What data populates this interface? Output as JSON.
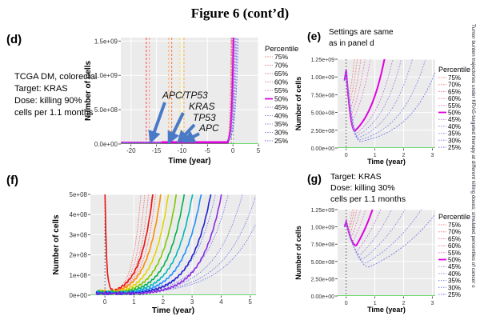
{
  "figure_title": "Figure 6 (cont’d)",
  "panels": {
    "d": {
      "letter": "(d)",
      "info_lines": [
        "TCGA DM, colorectal",
        "Target: KRAS",
        "Dose: killing 90%",
        "cells per 1.1 months"
      ],
      "mutation_labels": [
        "APC/TP53",
        "KRAS",
        "TP53",
        "APC"
      ]
    },
    "e": {
      "letter": "(e)",
      "note_lines": [
        "Settings are same",
        "as in panel d"
      ]
    },
    "f": {
      "letter": "(f)"
    },
    "g": {
      "letter": "(g)",
      "info_lines": [
        "Target: KRAS",
        "Dose: killing 30%",
        "cells per 1.1 months"
      ]
    }
  },
  "legend": {
    "title": "Percentile",
    "entries": [
      "75%",
      "70%",
      "65%",
      "60%",
      "55%",
      "50%",
      "45%",
      "40%",
      "35%",
      "30%",
      "25%"
    ],
    "colors": [
      "#f08080",
      "#f08080",
      "#e9788f",
      "#e47ab0",
      "#de77c8",
      "#e000e0",
      "#b07ad8",
      "#9a80e0",
      "#8888e8",
      "#7a80ea",
      "#6a6ee8"
    ]
  },
  "colors": {
    "threshold": "#22cc22",
    "arrow": "#4a79c6",
    "magenta": "#e000e0"
  },
  "sidebar_text": "Tumor burden trajectories under KRAS-targeted therapy at different killing doses; simulated percentiles of cancer cell numbers over time",
  "chart_data": [
    {
      "panel": "d",
      "type": "line",
      "xlabel": "Time (year)",
      "ylabel": "Number of cells",
      "xlim": [
        -22,
        5
      ],
      "ylim": [
        0,
        1550000000
      ],
      "xticks": [
        -20,
        -15,
        -10,
        -5,
        0,
        5
      ],
      "yticks": [
        0,
        500000000,
        1000000000,
        1500000000
      ],
      "ytick_labels": [
        "0.0e+00",
        "5.0e+08",
        "1.0e+09",
        "1.5e+09"
      ],
      "vlines": [
        -17,
        -16.4,
        -12.6,
        -12.0,
        -10.4,
        -9.6,
        -0.3,
        0.1
      ],
      "vline_colors": [
        "#ff3333",
        "#ff8888",
        "#ffaa44",
        "#ff6633",
        "#ffee33",
        "#ffaa44",
        "#999999",
        "#999999"
      ],
      "series_model": "baseline 2e7 cells until t=0, then rapid regrowth with rate k",
      "series": [
        {
          "name": "75%",
          "k": 5.2
        },
        {
          "name": "70%",
          "k": 4.7
        },
        {
          "name": "65%",
          "k": 4.3
        },
        {
          "name": "60%",
          "k": 3.9
        },
        {
          "name": "55%",
          "k": 3.6
        },
        {
          "name": "50%",
          "k": 3.3
        },
        {
          "name": "45%",
          "k": 3.0
        },
        {
          "name": "40%",
          "k": 2.7
        },
        {
          "name": "35%",
          "k": 2.45
        },
        {
          "name": "30%",
          "k": 2.2
        },
        {
          "name": "25%",
          "k": 1.95
        }
      ]
    },
    {
      "panel": "e",
      "type": "line",
      "xlabel": "Time (year)",
      "ylabel": "Number of cells",
      "xlim": [
        -0.3,
        3.1
      ],
      "ylim": [
        0,
        1250000000
      ],
      "xticks": [
        0,
        1,
        2,
        3
      ],
      "yticks": [
        0,
        250000000,
        500000000,
        750000000,
        1000000000,
        1250000000
      ],
      "ytick_labels": [
        "0.00e+00",
        "2.50e+08",
        "5.00e+08",
        "7.50e+08",
        "1.00e+09",
        "1.25e+09"
      ],
      "start_value": 950000000,
      "peak_value": 1100000000,
      "minima": [
        {
          "name": "75%",
          "t": 0.12,
          "v": 760000000,
          "slope": 3.0
        },
        {
          "name": "70%",
          "t": 0.14,
          "v": 660000000,
          "slope": 2.6
        },
        {
          "name": "65%",
          "t": 0.16,
          "v": 560000000,
          "slope": 2.3
        },
        {
          "name": "60%",
          "t": 0.18,
          "v": 470000000,
          "slope": 2.05
        },
        {
          "name": "55%",
          "t": 0.2,
          "v": 380000000,
          "slope": 1.85
        },
        {
          "name": "50%",
          "t": 0.3,
          "v": 240000000,
          "slope": 1.6
        },
        {
          "name": "45%",
          "t": 0.33,
          "v": 200000000,
          "slope": 1.42
        },
        {
          "name": "40%",
          "t": 0.36,
          "v": 170000000,
          "slope": 1.28
        },
        {
          "name": "35%",
          "t": 0.4,
          "v": 140000000,
          "slope": 1.15
        },
        {
          "name": "30%",
          "t": 0.45,
          "v": 110000000,
          "slope": 1.05
        },
        {
          "name": "25%",
          "t": 0.5,
          "v": 90000000,
          "slope": 0.95
        }
      ]
    },
    {
      "panel": "f",
      "type": "line",
      "xlabel": "Time (year)",
      "ylabel": "Number of cells",
      "xlim": [
        -0.5,
        5.2
      ],
      "ylim": [
        0,
        500000000
      ],
      "xticks": [
        0,
        1,
        2,
        3,
        4,
        5
      ],
      "yticks": [
        0,
        100000000,
        200000000,
        300000000,
        400000000,
        500000000
      ],
      "ytick_labels": [
        "0e+00",
        "1e+08",
        "2e+08",
        "3e+08",
        "4e+08",
        "5e+08"
      ],
      "solid_series": [
        {
          "color": "#ee1111",
          "t0": 0.25,
          "k": 2.3
        },
        {
          "color": "#ff8c00",
          "t0": 0.35,
          "k": 2.1
        },
        {
          "color": "#e3d400",
          "t0": 0.45,
          "k": 1.95
        },
        {
          "color": "#7ec800",
          "t0": 0.55,
          "k": 1.82
        },
        {
          "color": "#00b050",
          "t0": 0.65,
          "k": 1.72
        },
        {
          "color": "#00b8b8",
          "t0": 0.75,
          "k": 1.63
        },
        {
          "color": "#1e90ff",
          "t0": 0.85,
          "k": 1.55
        },
        {
          "color": "#2020d0",
          "t0": 1.0,
          "k": 1.5
        },
        {
          "color": "#8a2be2",
          "t0": 1.2,
          "k": 1.47
        }
      ],
      "dotted_red_k": [
        3.6,
        3.2,
        2.9,
        2.65,
        2.45
      ],
      "dotted_blue_k": [
        1.3,
        1.15,
        1.02,
        0.92,
        0.85
      ]
    },
    {
      "panel": "g",
      "type": "line",
      "xlabel": "Time (year)",
      "ylabel": "Number of cells",
      "xlim": [
        -0.3,
        3.1
      ],
      "ylim": [
        0,
        1250000000
      ],
      "xticks": [
        0,
        1,
        2,
        3
      ],
      "yticks": [
        0,
        250000000,
        500000000,
        750000000,
        1000000000,
        1250000000
      ],
      "ytick_labels": [
        "0.00e+00",
        "2.50e+08",
        "5.00e+08",
        "7.50e+08",
        "1.00e+09",
        "1.25e+09"
      ],
      "start_value": 1000000000,
      "peak_value": 1080000000,
      "minima": [
        {
          "name": "75%",
          "t": 0.1,
          "v": 1000000000,
          "slope": 1.9
        },
        {
          "name": "70%",
          "t": 0.12,
          "v": 960000000,
          "slope": 1.6
        },
        {
          "name": "65%",
          "t": 0.15,
          "v": 920000000,
          "slope": 1.4
        },
        {
          "name": "60%",
          "t": 0.2,
          "v": 870000000,
          "slope": 1.2
        },
        {
          "name": "55%",
          "t": 0.25,
          "v": 800000000,
          "slope": 1.05
        },
        {
          "name": "50%",
          "t": 0.35,
          "v": 730000000,
          "slope": 0.95
        },
        {
          "name": "45%",
          "t": 0.4,
          "v": 660000000,
          "slope": 0.8
        },
        {
          "name": "40%",
          "t": 0.5,
          "v": 600000000,
          "slope": 0.68
        },
        {
          "name": "35%",
          "t": 0.6,
          "v": 540000000,
          "slope": 0.58
        },
        {
          "name": "30%",
          "t": 0.7,
          "v": 480000000,
          "slope": 0.5
        },
        {
          "name": "25%",
          "t": 0.8,
          "v": 420000000,
          "slope": 0.45
        }
      ]
    }
  ]
}
